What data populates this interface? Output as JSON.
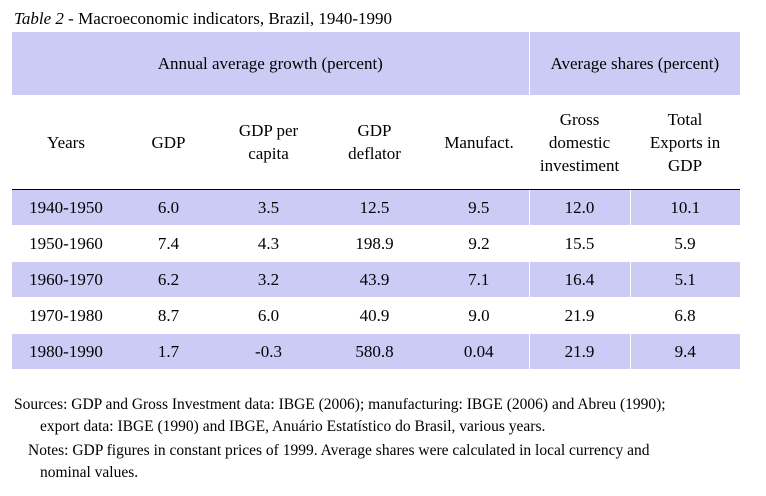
{
  "caption": {
    "label": "Table 2",
    "text": " - Macroeconomic indicators, Brazil, 1940-1990"
  },
  "header": {
    "group_growth": "Annual average growth (percent)",
    "group_shares": "Average shares (percent)",
    "columns": [
      "Years",
      "GDP",
      "GDP per capita",
      "GDP deflator",
      "Manufact.",
      "Gross domestic investiment",
      "Total Exports in GDP"
    ]
  },
  "rows": [
    [
      "1940-1950",
      "6.0",
      "3.5",
      "12.5",
      "9.5",
      "12.0",
      "10.1"
    ],
    [
      "1950-1960",
      "7.4",
      "4.3",
      "198.9",
      "9.2",
      "15.5",
      "5.9"
    ],
    [
      "1960-1970",
      "6.2",
      "3.2",
      "43.9",
      "7.1",
      "16.4",
      "5.1"
    ],
    [
      "1970-1980",
      "8.7",
      "6.0",
      "40.9",
      "9.0",
      "21.9",
      "6.8"
    ],
    [
      "1980-1990",
      "1.7",
      "-0.3",
      "580.8",
      "0.04",
      "21.9",
      "9.4"
    ]
  ],
  "notes": {
    "sources_line1": "Sources: GDP and Gross Investment data: IBGE (2006); manufacturing: IBGE (2006) and Abreu (1990);",
    "sources_line2": "export data: IBGE (1990) and IBGE, Anuário Estatístico do Brasil, various years.",
    "notes_line1": "Notes: GDP figures in constant prices of 1999. Average shares were calculated in local currency and",
    "notes_line2": "nominal values."
  }
}
